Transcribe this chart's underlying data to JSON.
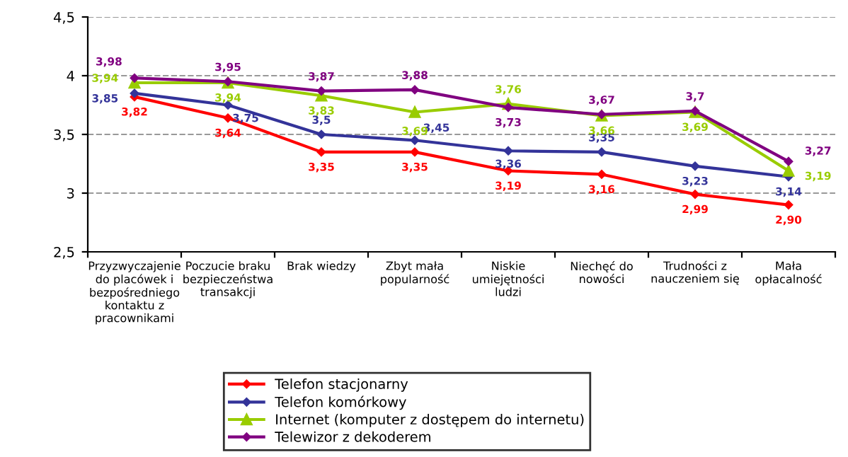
{
  "chart_data": {
    "type": "line",
    "categories": [
      "Przyzwyczajenie\ndo placówek i\nbezpośredniego\nkontaktu z\npracownikami",
      "Poczucie braku\nbezpieczeństwa\ntransakcji",
      "Brak wiedzy",
      "Zbyt mała\npopularność",
      "Niskie\numiejętności\nludzi",
      "Niechęć do\nnowości",
      "Trudności z\nnauczeniem się",
      "Mała\nopłacalność"
    ],
    "series": [
      {
        "name": "Telefon stacjonarny",
        "color": "#ff0000",
        "marker": "diamond",
        "values": [
          3.82,
          3.64,
          3.35,
          3.35,
          3.19,
          3.16,
          2.99,
          2.9
        ],
        "value_labels": [
          "3,82",
          "3,64",
          "3,35",
          "3,35",
          "3,19",
          "3,16",
          "2,99",
          "2,90"
        ]
      },
      {
        "name": "Telefon komórkowy",
        "color": "#333399",
        "marker": "diamond",
        "values": [
          3.85,
          3.75,
          3.5,
          3.45,
          3.36,
          3.35,
          3.23,
          3.14
        ],
        "value_labels": [
          "3,85",
          "3,75",
          "3,5",
          "3,45",
          "3,36",
          "3,35",
          "3,23",
          "3,14"
        ]
      },
      {
        "name": "Internet (komputer z dostępem do internetu)",
        "color": "#99cc00",
        "marker": "triangle",
        "values": [
          3.94,
          3.94,
          3.83,
          3.69,
          3.76,
          3.66,
          3.69,
          3.19
        ],
        "value_labels": [
          "3,94",
          "3,94",
          "3,83",
          "3,69",
          "3,76",
          "3,66",
          "3,69",
          "3,19"
        ]
      },
      {
        "name": "Telewizor z dekoderem",
        "color": "#800080",
        "marker": "diamond",
        "values": [
          3.98,
          3.95,
          3.87,
          3.88,
          3.73,
          3.67,
          3.7,
          3.27
        ],
        "value_labels": [
          "3,98",
          "3,95",
          "3,87",
          "3,88",
          "3,73",
          "3,67",
          "3,7",
          "3,27"
        ]
      }
    ],
    "ylim": [
      2.5,
      4.5
    ],
    "yticks": [
      {
        "value": 2.5,
        "label": "2,5"
      },
      {
        "value": 3,
        "label": "3"
      },
      {
        "value": 3.5,
        "label": "3,5"
      },
      {
        "value": 4,
        "label": "4"
      },
      {
        "value": 4.5,
        "label": "4,5"
      }
    ],
    "grid": "y",
    "legend": "bottom",
    "line_style": "solid"
  }
}
